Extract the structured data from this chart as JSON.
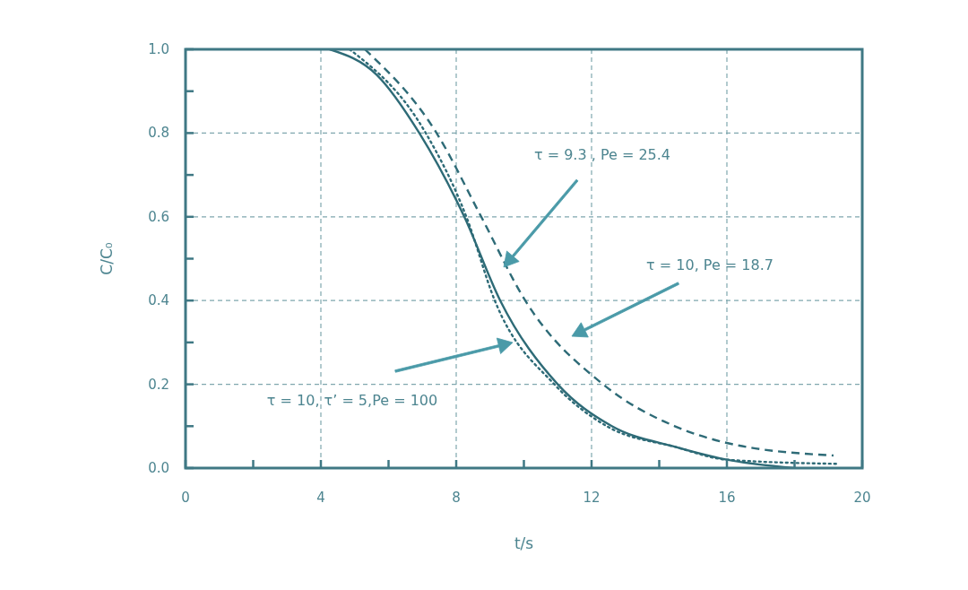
{
  "chart_data": {
    "type": "line",
    "xlabel": "t/s",
    "ylabel": "C/C₀",
    "xlim": [
      0,
      20
    ],
    "ylim": [
      0,
      1
    ],
    "xticks": [
      0,
      {
        "value": 2,
        "label": null
      },
      4,
      {
        "value": 6,
        "label": null
      },
      8,
      {
        "value": 10,
        "label": null
      },
      12,
      {
        "value": 14,
        "label": null
      },
      16,
      {
        "value": 18,
        "label": null
      },
      20
    ],
    "yticks": [
      {
        "value": 0,
        "label": "0.0"
      },
      {
        "value": 0.1,
        "label": null
      },
      {
        "value": 0.2,
        "label": "0.2"
      },
      {
        "value": 0.3,
        "label": null
      },
      {
        "value": 0.4,
        "label": "0.4"
      },
      {
        "value": 0.5,
        "label": null
      },
      {
        "value": 0.6,
        "label": "0.6"
      },
      {
        "value": 0.7,
        "label": null
      },
      {
        "value": 0.8,
        "label": "0.8"
      },
      {
        "value": 0.9,
        "label": null
      },
      {
        "value": 1,
        "label": "1.0"
      }
    ],
    "grid": true,
    "series": [
      {
        "color": "#2e6b77",
        "line_style": "solid",
        "x": [
          4.26,
          5.64,
          6.91,
          8.24,
          9.3,
          11.0,
          12.6,
          14.5,
          16,
          18.0
        ],
        "values": [
          1.0,
          0.94,
          0.8,
          0.6,
          0.4,
          0.2,
          0.1,
          0.05,
          0.02,
          0.0
        ]
      },
      {
        "color": "#2e6b77",
        "line_style": "dotted",
        "x": [
          4.85,
          7.1,
          8.3,
          9.14,
          10.9,
          12.45,
          14.5,
          16,
          19.3
        ],
        "values": [
          1.0,
          0.8,
          0.6,
          0.4,
          0.2,
          0.1,
          0.05,
          0.02,
          0.01
        ]
      },
      {
        "color": "#2e6b77",
        "line_style": "dashed",
        "x": [
          5.3,
          7.42,
          8.74,
          10.04,
          12.34,
          14.46,
          16,
          19.15
        ],
        "values": [
          1.0,
          0.8,
          0.6,
          0.4,
          0.2,
          0.1,
          0.06,
          0.03
        ]
      }
    ],
    "annotations": [
      "τ = 9.3 , Pe = 25.4",
      "τ = 10, Pe = 18.7",
      "τ = 10, τ’ = 5,Pe = 100"
    ]
  }
}
